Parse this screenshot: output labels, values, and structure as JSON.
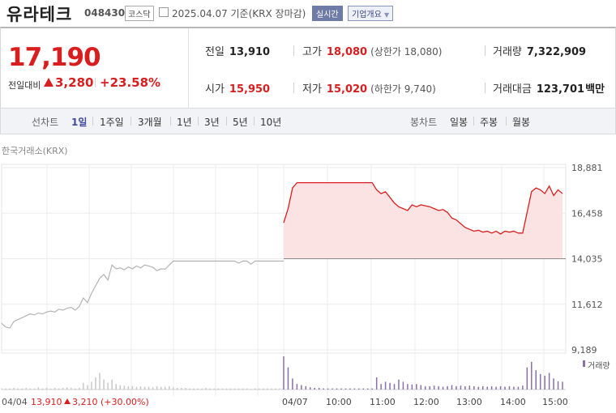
{
  "header": {
    "name": "유라테크",
    "code": "048430",
    "market": "코스닥",
    "date_basis": "2025.04.07 기준(KRX 장마감)",
    "live_label": "실시간",
    "company_info_label": "기업개요"
  },
  "quote": {
    "price": "17,190",
    "change_label": "전일대비",
    "change_amount": "3,280",
    "change_pct": "+23.58%",
    "prev_close": {
      "label": "전일",
      "value": "13,910"
    },
    "open": {
      "label": "시가",
      "value": "15,950"
    },
    "high": {
      "label": "고가",
      "value": "18,080",
      "limit_label": "상한가",
      "limit_value": "18,080"
    },
    "low": {
      "label": "저가",
      "value": "15,020",
      "limit_label": "하한가",
      "limit_value": "9,740"
    },
    "volume": {
      "label": "거래량",
      "value": "7,322,909"
    },
    "trade_value": {
      "label": "거래대금",
      "value": "123,701",
      "unit": "백만"
    }
  },
  "periods": {
    "line_label": "선차트",
    "line_options": [
      "1일",
      "1주일",
      "3개월",
      "1년",
      "3년",
      "5년",
      "10년"
    ],
    "selected": "1일",
    "candle_label": "봉차트",
    "candle_options": [
      "일봉",
      "주봉",
      "월봉"
    ]
  },
  "source_label": "한국거래소(KRX)",
  "footer": {
    "prev_date": "04/04",
    "prev_close": "13,910",
    "prev_change": "3,210 (+30.00%)"
  },
  "colors": {
    "up": "#d81e1e",
    "down": "#1e5fd8",
    "prev_line": "#b4b4b4",
    "volume": "#8b6fa8",
    "area_fill": "#fce3e3"
  },
  "chart_data": {
    "type": "line",
    "y_ticks": [
      "18,881",
      "16,458",
      "14,035",
      "11,612",
      "9,189"
    ],
    "ylim": [
      9189,
      18881
    ],
    "baseline": 14035,
    "x_labels": [
      "04/04",
      "04/07",
      "10:00",
      "11:00",
      "12:00",
      "13:00",
      "14:00",
      "15:00"
    ],
    "volume_legend": "거래량",
    "prev_day": {
      "name": "04/04",
      "values": [
        10600,
        10400,
        10350,
        10700,
        10800,
        10900,
        11000,
        11100,
        11050,
        11150,
        11100,
        11200,
        11250,
        11200,
        11350,
        11300,
        11400,
        11450,
        11300,
        11500,
        11950,
        11700,
        12200,
        12600,
        13000,
        13200,
        12900,
        13700,
        13500,
        13550,
        13450,
        13600,
        13500,
        13650,
        13550,
        13700,
        13650,
        13580,
        13400,
        13500,
        13480,
        13700,
        13910,
        13910,
        13910,
        13910,
        13910,
        13910,
        13910,
        13910,
        13910,
        13910,
        13910,
        13910,
        13910,
        13910,
        13910,
        13910,
        13800,
        13910,
        13910,
        13750,
        13910,
        13910,
        13910,
        13910,
        13910,
        13910,
        13910,
        13910
      ]
    },
    "today": {
      "name": "04/07",
      "values": [
        15950,
        16700,
        17800,
        18080,
        18080,
        18080,
        18080,
        18080,
        18080,
        18080,
        18080,
        18080,
        18080,
        18080,
        18080,
        18080,
        18080,
        18080,
        18080,
        18080,
        18080,
        17700,
        17500,
        17600,
        17300,
        17000,
        16800,
        16700,
        16600,
        16900,
        16800,
        16900,
        16850,
        16800,
        16700,
        16600,
        16650,
        16500,
        16200,
        16100,
        15900,
        15700,
        15600,
        15500,
        15550,
        15450,
        15500,
        15400,
        15500,
        15350,
        15500,
        15450,
        15500,
        15400,
        15400,
        16500,
        17600,
        17800,
        17700,
        17500,
        17900,
        17400,
        17700,
        17500
      ],
      "last": 17190
    },
    "volume_prev": [
      2,
      2,
      2,
      3,
      2,
      2,
      3,
      2,
      2,
      4,
      2,
      3,
      2,
      3,
      2,
      3,
      4,
      3,
      2,
      3,
      12,
      8,
      14,
      22,
      30,
      18,
      12,
      18,
      10,
      8,
      7,
      6,
      6,
      5,
      6,
      5,
      5,
      4,
      6,
      5,
      5,
      6,
      4,
      3,
      3,
      3,
      2,
      2,
      2,
      2,
      3,
      2,
      2,
      2,
      2,
      2,
      2,
      2,
      2,
      2,
      2,
      1,
      2,
      2,
      2,
      2,
      2,
      2,
      2,
      2
    ],
    "volume_today": [
      60,
      40,
      20,
      10,
      8,
      6,
      4,
      3,
      3,
      2,
      2,
      2,
      2,
      2,
      2,
      2,
      2,
      2,
      2,
      2,
      2,
      22,
      10,
      14,
      12,
      10,
      18,
      14,
      10,
      9,
      10,
      8,
      6,
      6,
      7,
      6,
      5,
      6,
      8,
      6,
      7,
      6,
      7,
      6,
      5,
      6,
      5,
      6,
      5,
      6,
      5,
      6,
      5,
      5,
      7,
      40,
      50,
      35,
      28,
      25,
      30,
      20,
      15,
      14
    ]
  }
}
